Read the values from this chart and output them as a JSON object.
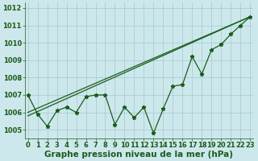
{
  "x": [
    0,
    1,
    2,
    3,
    4,
    5,
    6,
    7,
    8,
    9,
    10,
    11,
    12,
    13,
    14,
    15,
    16,
    17,
    18,
    19,
    20,
    21,
    22,
    23
  ],
  "y_line": [
    1007.0,
    1005.9,
    1005.2,
    1006.1,
    1006.3,
    1006.0,
    1006.9,
    1007.0,
    1007.0,
    1005.3,
    1006.3,
    1005.7,
    1006.3,
    1004.8,
    1006.2,
    1007.5,
    1007.6,
    1009.2,
    1008.2,
    1009.6,
    1009.9,
    1010.5,
    1011.0,
    1011.5
  ],
  "trend1_x": [
    0,
    23
  ],
  "trend1_y": [
    1006.0,
    1011.5
  ],
  "trend2_x": [
    0,
    23
  ],
  "trend2_y": [
    1005.8,
    1011.5
  ],
  "background_color": "#cde8ec",
  "grid_color": "#aacdd2",
  "line_color": "#1a5c1a",
  "xlabel": "Graphe pression niveau de la mer (hPa)",
  "ylim": [
    1004.5,
    1012.3
  ],
  "xlim": [
    -0.3,
    23.3
  ],
  "yticks": [
    1005,
    1006,
    1007,
    1008,
    1009,
    1010,
    1011,
    1012
  ],
  "xticks": [
    0,
    1,
    2,
    3,
    4,
    5,
    6,
    7,
    8,
    9,
    10,
    11,
    12,
    13,
    14,
    15,
    16,
    17,
    18,
    19,
    20,
    21,
    22,
    23
  ],
  "marker": "*",
  "markersize": 3.5,
  "linewidth": 0.9,
  "xlabel_fontsize": 7.5,
  "tick_fontsize": 6.0
}
